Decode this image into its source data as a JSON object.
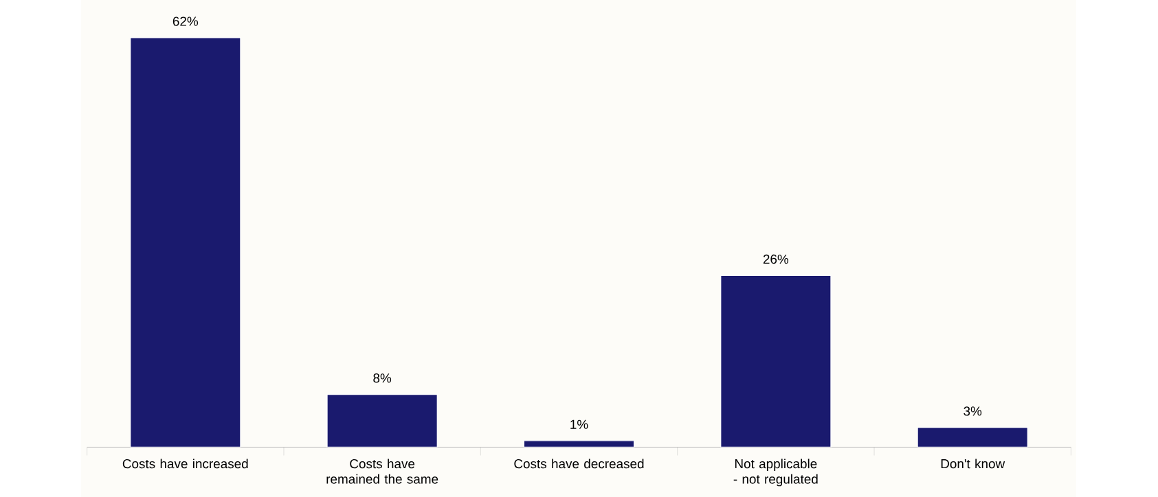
{
  "chart_data": {
    "type": "bar",
    "categories": [
      "Costs have increased",
      "Costs have remained the same",
      "Costs have decreased",
      "Not applicable - not regulated",
      "Don't know"
    ],
    "values": [
      62,
      8,
      1,
      26,
      3
    ],
    "value_labels": [
      "62%",
      "8%",
      "1%",
      "26%",
      "3%"
    ],
    "color": "#1a1a6e"
  }
}
